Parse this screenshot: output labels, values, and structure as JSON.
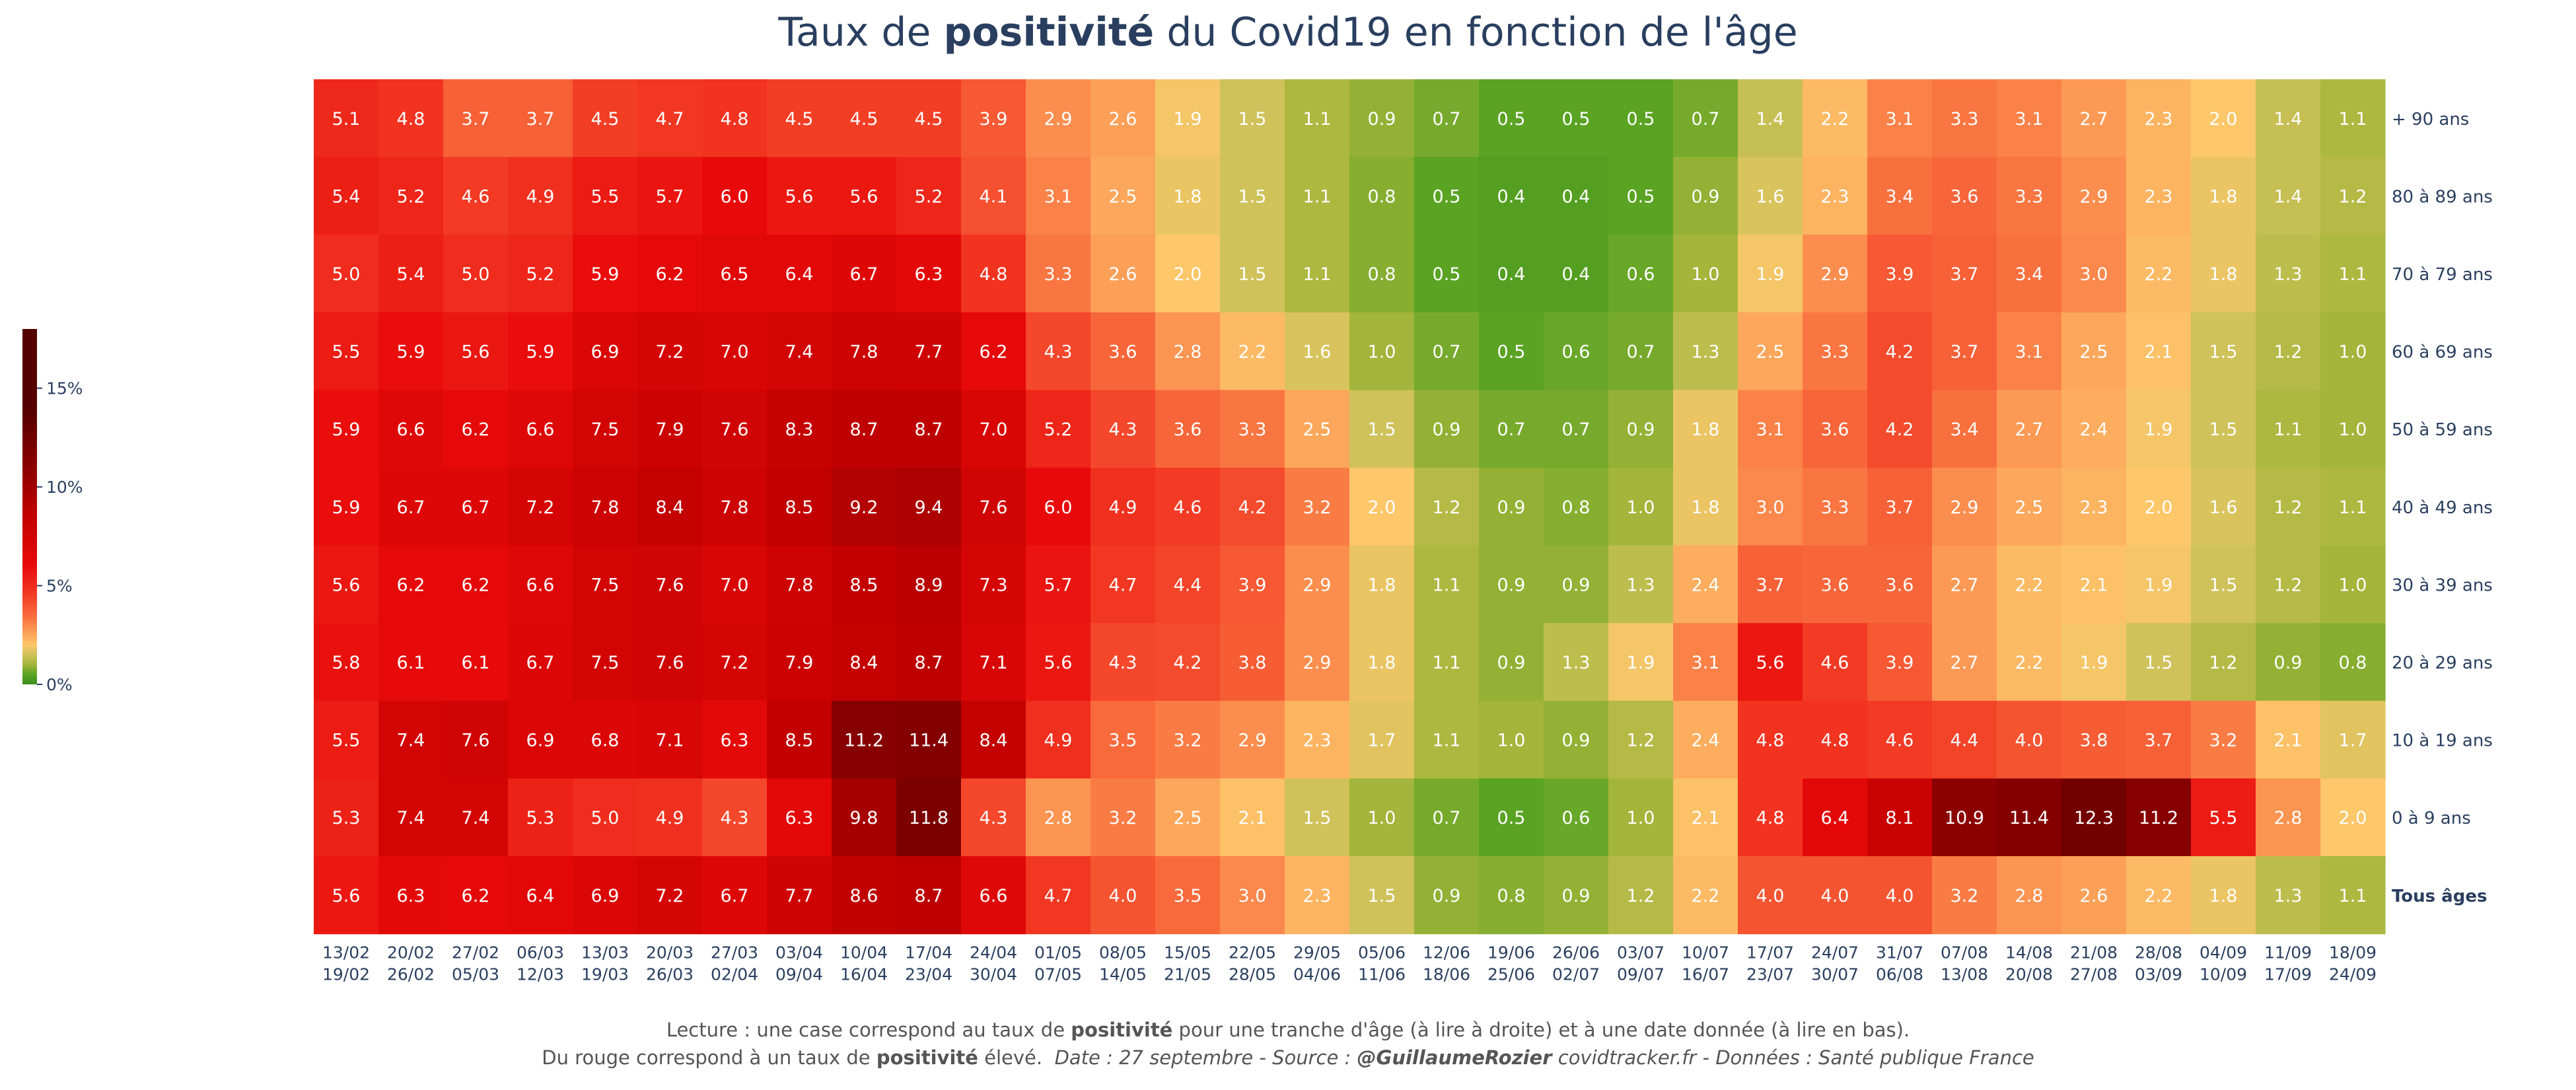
{
  "title": {
    "pre": "Taux de ",
    "bold": "positivité",
    "post": " du Covid19 en fonction de l'âge"
  },
  "caption": {
    "line1_pre": "Lecture : une case correspond au taux de ",
    "line1_bold": "positivité",
    "line1_post": " pour une tranche d'âge (à lire à droite) et à une date donnée (à lire en bas).",
    "line2_pre": "Du rouge correspond à un taux de ",
    "line2_bold": "positivité",
    "line2_mid": " élevé.",
    "line2_italic_a": "Date : 27 septembre - Source : ",
    "line2_italic_bold": "@GuillaumeRozier",
    "line2_italic_b": " covidtracker.fr - Données : Santé publique France"
  },
  "colors": {
    "text_dark": "#2a3f5f",
    "cell_text": "#ffffff",
    "scale": [
      "#3a8f1e",
      "#5aa323",
      "#a3b53a",
      "#cfc25a",
      "#fdc76a",
      "#fc9a55",
      "#f86a3c",
      "#f23a24",
      "#e80a0a",
      "#c30000",
      "#8b0000",
      "#540000"
    ]
  },
  "chart_data": {
    "type": "heatmap",
    "value_unit": "%",
    "zmin": 0,
    "zmax": 18,
    "colorbar": {
      "ticks": [
        0,
        5,
        10,
        15
      ],
      "ticklabels": [
        "0%",
        "5%",
        "10%",
        "15%"
      ]
    },
    "x": [
      [
        "13/02",
        "19/02"
      ],
      [
        "20/02",
        "26/02"
      ],
      [
        "27/02",
        "05/03"
      ],
      [
        "06/03",
        "12/03"
      ],
      [
        "13/03",
        "19/03"
      ],
      [
        "20/03",
        "26/03"
      ],
      [
        "27/03",
        "02/04"
      ],
      [
        "03/04",
        "09/04"
      ],
      [
        "10/04",
        "16/04"
      ],
      [
        "17/04",
        "23/04"
      ],
      [
        "24/04",
        "30/04"
      ],
      [
        "01/05",
        "07/05"
      ],
      [
        "08/05",
        "14/05"
      ],
      [
        "15/05",
        "21/05"
      ],
      [
        "22/05",
        "28/05"
      ],
      [
        "29/05",
        "04/06"
      ],
      [
        "05/06",
        "11/06"
      ],
      [
        "12/06",
        "18/06"
      ],
      [
        "19/06",
        "25/06"
      ],
      [
        "26/06",
        "02/07"
      ],
      [
        "03/07",
        "09/07"
      ],
      [
        "10/07",
        "16/07"
      ],
      [
        "17/07",
        "23/07"
      ],
      [
        "24/07",
        "30/07"
      ],
      [
        "31/07",
        "06/08"
      ],
      [
        "07/08",
        "13/08"
      ],
      [
        "14/08",
        "20/08"
      ],
      [
        "21/08",
        "27/08"
      ],
      [
        "28/08",
        "03/09"
      ],
      [
        "04/09",
        "10/09"
      ],
      [
        "11/09",
        "17/09"
      ],
      [
        "18/09",
        "24/09"
      ]
    ],
    "y": [
      "+ 90 ans",
      "80 à 89 ans",
      "70 à 79 ans",
      "60 à 69 ans",
      "50 à 59 ans",
      "40 à 49 ans",
      "30 à 39 ans",
      "20 à 29 ans",
      "10 à 19 ans",
      "0 à 9 ans",
      "Tous âges"
    ],
    "y_bold": [
      false,
      false,
      false,
      false,
      false,
      false,
      false,
      false,
      false,
      false,
      true
    ],
    "z": [
      [
        5.1,
        4.8,
        3.7,
        3.7,
        4.5,
        4.7,
        4.8,
        4.5,
        4.5,
        4.5,
        3.9,
        2.9,
        2.6,
        1.9,
        1.5,
        1.1,
        0.9,
        0.7,
        0.5,
        0.5,
        0.5,
        0.7,
        1.4,
        2.2,
        3.1,
        3.3,
        3.1,
        2.7,
        2.3,
        2.0,
        1.4,
        1.1
      ],
      [
        5.4,
        5.2,
        4.6,
        4.9,
        5.5,
        5.7,
        6.0,
        5.6,
        5.6,
        5.2,
        4.1,
        3.1,
        2.5,
        1.8,
        1.5,
        1.1,
        0.8,
        0.5,
        0.4,
        0.4,
        0.5,
        0.9,
        1.6,
        2.3,
        3.4,
        3.6,
        3.3,
        2.9,
        2.3,
        1.8,
        1.4,
        1.2
      ],
      [
        5.0,
        5.4,
        5.0,
        5.2,
        5.9,
        6.2,
        6.5,
        6.4,
        6.7,
        6.3,
        4.8,
        3.3,
        2.6,
        2.0,
        1.5,
        1.1,
        0.8,
        0.5,
        0.4,
        0.4,
        0.6,
        1.0,
        1.9,
        2.9,
        3.9,
        3.7,
        3.4,
        3.0,
        2.2,
        1.8,
        1.3,
        1.1
      ],
      [
        5.5,
        5.9,
        5.6,
        5.9,
        6.9,
        7.2,
        7.0,
        7.4,
        7.8,
        7.7,
        6.2,
        4.3,
        3.6,
        2.8,
        2.2,
        1.6,
        1.0,
        0.7,
        0.5,
        0.6,
        0.7,
        1.3,
        2.5,
        3.3,
        4.2,
        3.7,
        3.1,
        2.5,
        2.1,
        1.5,
        1.2,
        1.0
      ],
      [
        5.9,
        6.6,
        6.2,
        6.6,
        7.5,
        7.9,
        7.6,
        8.3,
        8.7,
        8.7,
        7.0,
        5.2,
        4.3,
        3.6,
        3.3,
        2.5,
        1.5,
        0.9,
        0.7,
        0.7,
        0.9,
        1.8,
        3.1,
        3.6,
        4.2,
        3.4,
        2.7,
        2.4,
        1.9,
        1.5,
        1.1,
        1.0
      ],
      [
        5.9,
        6.7,
        6.7,
        7.2,
        7.8,
        8.4,
        7.8,
        8.5,
        9.2,
        9.4,
        7.6,
        6.0,
        4.9,
        4.6,
        4.2,
        3.2,
        2.0,
        1.2,
        0.9,
        0.8,
        1.0,
        1.8,
        3.0,
        3.3,
        3.7,
        2.9,
        2.5,
        2.3,
        2.0,
        1.6,
        1.2,
        1.1
      ],
      [
        5.6,
        6.2,
        6.2,
        6.6,
        7.5,
        7.6,
        7.0,
        7.8,
        8.5,
        8.9,
        7.3,
        5.7,
        4.7,
        4.4,
        3.9,
        2.9,
        1.8,
        1.1,
        0.9,
        0.9,
        1.3,
        2.4,
        3.7,
        3.6,
        3.6,
        2.7,
        2.2,
        2.1,
        1.9,
        1.5,
        1.2,
        1.0
      ],
      [
        5.8,
        6.1,
        6.1,
        6.7,
        7.5,
        7.6,
        7.2,
        7.9,
        8.4,
        8.7,
        7.1,
        5.6,
        4.3,
        4.2,
        3.8,
        2.9,
        1.8,
        1.1,
        0.9,
        1.3,
        1.9,
        3.1,
        5.6,
        4.6,
        3.9,
        2.7,
        2.2,
        1.9,
        1.5,
        1.2,
        0.9,
        0.8
      ],
      [
        5.5,
        7.4,
        7.6,
        6.9,
        6.8,
        7.1,
        6.3,
        8.5,
        11.2,
        11.4,
        8.4,
        4.9,
        3.5,
        3.2,
        2.9,
        2.3,
        1.7,
        1.1,
        1.0,
        0.9,
        1.2,
        2.4,
        4.8,
        4.8,
        4.6,
        4.4,
        4.0,
        3.8,
        3.7,
        3.2,
        2.1,
        1.7
      ],
      [
        5.3,
        7.4,
        7.4,
        5.3,
        5.0,
        4.9,
        4.3,
        6.3,
        9.8,
        11.8,
        4.3,
        2.8,
        3.2,
        2.5,
        2.1,
        1.5,
        1.0,
        0.7,
        0.5,
        0.6,
        1.0,
        2.1,
        4.8,
        6.4,
        8.1,
        10.9,
        11.4,
        12.3,
        11.2,
        5.5,
        2.8,
        2.0
      ],
      [
        5.6,
        6.3,
        6.2,
        6.4,
        6.9,
        7.2,
        6.7,
        7.7,
        8.6,
        8.7,
        6.6,
        4.7,
        4.0,
        3.5,
        3.0,
        2.3,
        1.5,
        0.9,
        0.8,
        0.9,
        1.2,
        2.2,
        4.0,
        4.0,
        4.0,
        3.2,
        2.8,
        2.6,
        2.2,
        1.8,
        1.3,
        1.1
      ]
    ]
  }
}
